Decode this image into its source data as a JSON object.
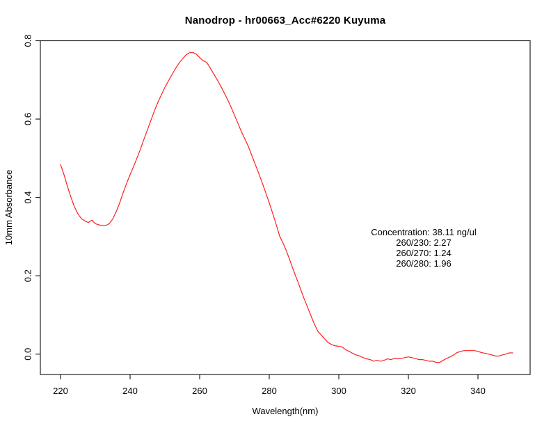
{
  "colors": {
    "background": "#ffffff",
    "frame": "#222222",
    "text": "#000000",
    "curve": "#ff1f1f"
  },
  "chart_data": {
    "type": "line",
    "title": "Nanodrop - hr00663_Acc#6220 Kuyuma",
    "xlabel": "Wavelength(nm)",
    "ylabel": "10mm Absorbance",
    "x_ticks": [
      220,
      240,
      260,
      280,
      300,
      320,
      340
    ],
    "y_ticks": [
      0.0,
      0.2,
      0.4,
      0.6,
      0.8
    ],
    "y_tick_labels": [
      "0.0",
      "0.2",
      "0.4",
      "0.6",
      "0.8"
    ],
    "xlim": [
      214.2,
      355
    ],
    "ylim": [
      -0.052,
      0.8
    ],
    "grid": false,
    "frame": "box",
    "legend": "none",
    "annotations": [
      "Concentration: 38.11 ng/ul",
      "260/230: 2.27",
      "260/270: 1.24",
      "260/280: 1.96"
    ],
    "series": [
      {
        "name": "absorbance-spectrum",
        "color": "#ff1f1f",
        "x_start": 220,
        "x_step": 1,
        "x_end": 350,
        "values": [
          0.484,
          0.458,
          0.428,
          0.4,
          0.376,
          0.358,
          0.346,
          0.34,
          0.336,
          0.342,
          0.333,
          0.33,
          0.328,
          0.328,
          0.333,
          0.345,
          0.363,
          0.386,
          0.412,
          0.436,
          0.458,
          0.479,
          0.501,
          0.524,
          0.549,
          0.573,
          0.597,
          0.621,
          0.643,
          0.662,
          0.681,
          0.697,
          0.713,
          0.728,
          0.742,
          0.753,
          0.763,
          0.769,
          0.77,
          0.766,
          0.757,
          0.749,
          0.745,
          0.731,
          0.716,
          0.701,
          0.685,
          0.668,
          0.65,
          0.631,
          0.61,
          0.589,
          0.568,
          0.549,
          0.53,
          0.507,
          0.484,
          0.461,
          0.437,
          0.412,
          0.386,
          0.359,
          0.331,
          0.301,
          0.283,
          0.262,
          0.238,
          0.213,
          0.19,
          0.166,
          0.142,
          0.12,
          0.098,
          0.076,
          0.058,
          0.048,
          0.038,
          0.029,
          0.024,
          0.021,
          0.02,
          0.018,
          0.011,
          0.007,
          0.002,
          -0.002,
          -0.005,
          -0.009,
          -0.012,
          -0.014,
          -0.018,
          -0.016,
          -0.018,
          -0.016,
          -0.012,
          -0.014,
          -0.011,
          -0.012,
          -0.011,
          -0.009,
          -0.007,
          -0.009,
          -0.011,
          -0.014,
          -0.014,
          -0.016,
          -0.018,
          -0.018,
          -0.021,
          -0.021,
          -0.016,
          -0.011,
          -0.007,
          -0.002,
          0.004,
          0.007,
          0.009,
          0.009,
          0.009,
          0.009,
          0.007,
          0.004,
          0.002,
          0.0,
          -0.002,
          -0.005,
          -0.005,
          -0.002,
          0.0,
          0.003,
          0.003
        ]
      }
    ]
  }
}
